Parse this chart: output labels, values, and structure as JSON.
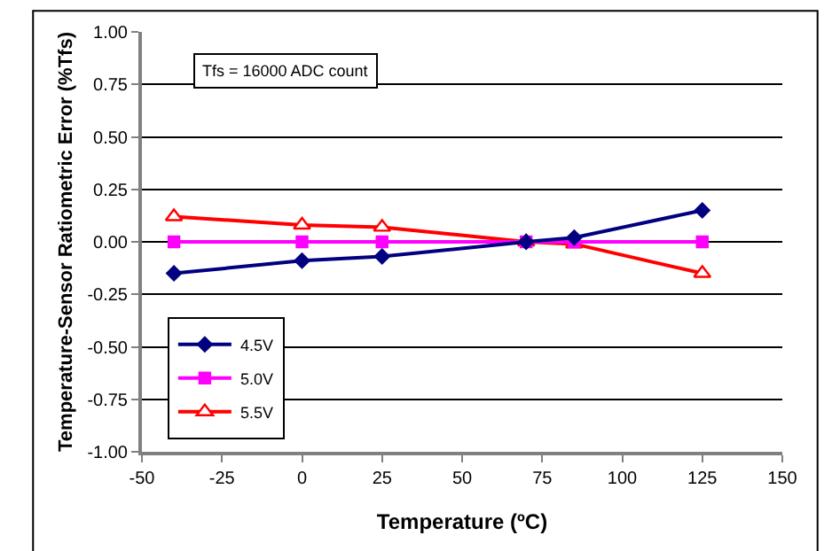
{
  "chart_data": {
    "type": "line",
    "xlabel": "Temperature (ºC)",
    "ylabel": "Temperature-Sensor Ratiometric Error (%Tfs)",
    "x": [
      -40,
      0,
      25,
      70,
      85,
      125
    ],
    "series": [
      {
        "name": "4.5V",
        "color": "#000080",
        "marker": "diamond",
        "values": [
          -0.15,
          -0.09,
          -0.07,
          0.0,
          0.02,
          0.15
        ]
      },
      {
        "name": "5.0V",
        "color": "#ff00ff",
        "marker": "square",
        "values": [
          0.0,
          0.0,
          0.0,
          0.0,
          0.0,
          0.0
        ]
      },
      {
        "name": "5.5V",
        "color": "#ff0000",
        "marker": "triangle",
        "values": [
          0.12,
          0.08,
          0.07,
          0.0,
          -0.01,
          -0.15
        ]
      }
    ],
    "xlim": [
      -50,
      150
    ],
    "xticks": [
      -50,
      -25,
      0,
      25,
      50,
      75,
      100,
      125,
      150
    ],
    "ylim": [
      -1.0,
      1.0
    ],
    "yticks": [
      {
        "value": -1.0,
        "label": "-1.00"
      },
      {
        "value": -0.75,
        "label": "-0.75"
      },
      {
        "value": -0.5,
        "label": "-0.50"
      },
      {
        "value": -0.25,
        "label": "-0.25"
      },
      {
        "value": 0.0,
        "label": "0.00"
      },
      {
        "value": 0.25,
        "label": "0.25"
      },
      {
        "value": 0.5,
        "label": "0.50"
      },
      {
        "value": 0.75,
        "label": "0.75"
      },
      {
        "value": 1.0,
        "label": "1.00"
      }
    ],
    "annotations": [
      "Tfs = 16000 ADC count"
    ],
    "grid": "y",
    "legend": "bottom left",
    "line_style": "solid"
  }
}
